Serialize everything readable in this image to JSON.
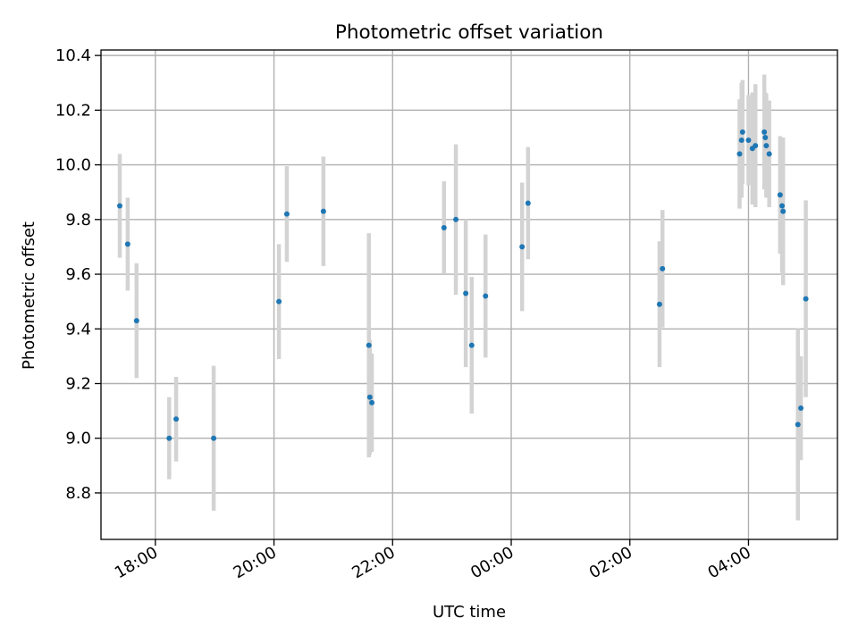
{
  "chart_data": {
    "type": "scatter",
    "title": "Photometric offset variation",
    "xlabel": "UTC time",
    "ylabel": "Photometric offset",
    "x_unit": "UTC time (HH:MM), sequential across midnight",
    "x_ticks": [
      "18:00",
      "20:00",
      "22:00",
      "00:00",
      "02:00",
      "04:00"
    ],
    "y_ticks": [
      "8.8",
      "9.0",
      "9.2",
      "9.4",
      "9.6",
      "9.8",
      "10.0",
      "10.2",
      "10.4"
    ],
    "xlim": [
      "17:05",
      "05:30"
    ],
    "ylim": [
      8.63,
      10.42
    ],
    "grid": true,
    "colors": {
      "points": "#1f77b4",
      "errorbars": "#d3d3d3",
      "grid": "#b0b0b0"
    },
    "points": [
      {
        "t": "17:24",
        "y": 9.85,
        "err": 0.19
      },
      {
        "t": "17:32",
        "y": 9.71,
        "err": 0.17
      },
      {
        "t": "17:41",
        "y": 9.43,
        "err": 0.21
      },
      {
        "t": "18:14",
        "y": 9.0,
        "err": 0.15
      },
      {
        "t": "18:21",
        "y": 9.07,
        "err": 0.155
      },
      {
        "t": "18:59",
        "y": 9.0,
        "err": 0.265
      },
      {
        "t": "20:05",
        "y": 9.5,
        "err": 0.21
      },
      {
        "t": "20:13",
        "y": 9.82,
        "err": 0.175
      },
      {
        "t": "20:50",
        "y": 9.83,
        "err": 0.2
      },
      {
        "t": "21:36",
        "y": 9.34,
        "err": 0.41
      },
      {
        "t": "21:37",
        "y": 9.15,
        "err": 0.21
      },
      {
        "t": "21:39",
        "y": 9.13,
        "err": 0.18
      },
      {
        "t": "22:52",
        "y": 9.77,
        "err": 0.17
      },
      {
        "t": "23:04",
        "y": 9.8,
        "err": 0.275
      },
      {
        "t": "23:14",
        "y": 9.53,
        "err": 0.27
      },
      {
        "t": "23:20",
        "y": 9.34,
        "err": 0.25
      },
      {
        "t": "23:34",
        "y": 9.52,
        "err": 0.225
      },
      {
        "t": "00:11",
        "y": 9.7,
        "err": 0.235
      },
      {
        "t": "00:17",
        "y": 9.86,
        "err": 0.205
      },
      {
        "t": "02:30",
        "y": 9.49,
        "err": 0.23
      },
      {
        "t": "02:33",
        "y": 9.62,
        "err": 0.215
      },
      {
        "t": "03:51",
        "y": 10.04,
        "err": 0.2
      },
      {
        "t": "03:53",
        "y": 10.09,
        "err": 0.21
      },
      {
        "t": "03:54",
        "y": 10.12,
        "err": 0.19
      },
      {
        "t": "04:00",
        "y": 10.09,
        "err": 0.165
      },
      {
        "t": "04:04",
        "y": 10.06,
        "err": 0.205
      },
      {
        "t": "04:07",
        "y": 10.07,
        "err": 0.225
      },
      {
        "t": "04:16",
        "y": 10.12,
        "err": 0.21
      },
      {
        "t": "04:17",
        "y": 10.1,
        "err": 0.165
      },
      {
        "t": "04:18",
        "y": 10.07,
        "err": 0.19
      },
      {
        "t": "04:21",
        "y": 10.04,
        "err": 0.195
      },
      {
        "t": "04:32",
        "y": 9.89,
        "err": 0.215
      },
      {
        "t": "04:34",
        "y": 9.85,
        "err": 0.245
      },
      {
        "t": "04:35",
        "y": 9.83,
        "err": 0.27
      },
      {
        "t": "04:50",
        "y": 9.05,
        "err": 0.35
      },
      {
        "t": "04:53",
        "y": 9.11,
        "err": 0.19
      },
      {
        "t": "04:58",
        "y": 9.51,
        "err": 0.36
      }
    ]
  }
}
